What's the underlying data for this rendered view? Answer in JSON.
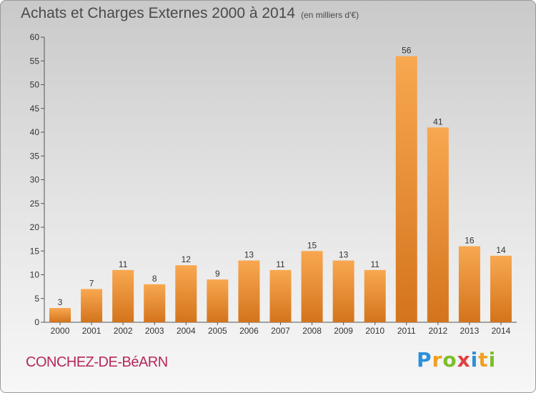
{
  "header": {
    "title": "Achats et Charges Externes 2000 à 2014",
    "subtitle": "(en milliers d'€)"
  },
  "footer": {
    "town": "CONCHEZ-DE-BéARN",
    "logo": {
      "p": "P",
      "r": "r",
      "o": "o",
      "x": "x",
      "i": "i",
      "t": "t",
      "i2": "i"
    }
  },
  "colors": {
    "bar_light": "#f8a850",
    "bar_dark": "#d4741c",
    "title": "#4a4a4a",
    "town": "#b5285c"
  },
  "chart_data": {
    "type": "bar",
    "title": "Achats et Charges Externes 2000 à 2014",
    "subtitle": "(en milliers d'€)",
    "categories": [
      "2000",
      "2001",
      "2002",
      "2003",
      "2004",
      "2005",
      "2006",
      "2007",
      "2008",
      "2009",
      "2010",
      "2011",
      "2012",
      "2013",
      "2014"
    ],
    "values": [
      3,
      7,
      11,
      8,
      12,
      9,
      13,
      11,
      15,
      13,
      11,
      56,
      41,
      16,
      14
    ],
    "ylim": [
      0,
      60
    ],
    "yticks": [
      0,
      5,
      10,
      15,
      20,
      25,
      30,
      35,
      40,
      45,
      50,
      55,
      60
    ],
    "grid": false,
    "data_labels": true
  }
}
